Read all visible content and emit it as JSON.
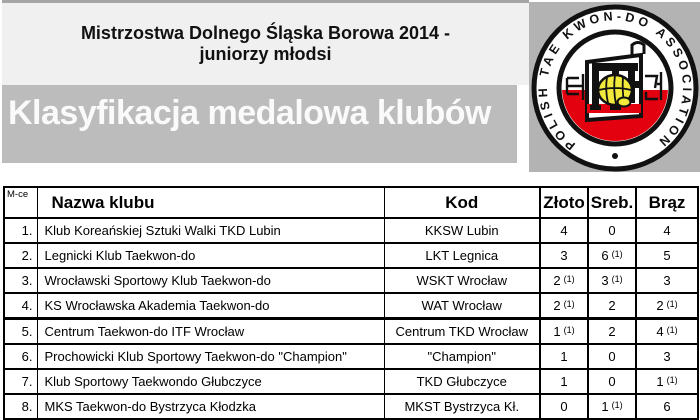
{
  "header": {
    "title_line1": "Mistrzostwa Dolnego Śląska Borowa 2014 -",
    "title_line2": "juniorzy młodsi",
    "banner": "Klasyfikacja medalowa klubów"
  },
  "logo": {
    "ring_text": "POLISH   TAE KWON-DO   ASSOCIATION",
    "colors": {
      "block_bg": "#b3b3b3",
      "ring_black": "#111111",
      "flag_red": "#e3000f",
      "fist_yellow": "#f2e93c"
    }
  },
  "table": {
    "columns": [
      "M-ce",
      "Nazwa klubu",
      "Kod",
      "Złoto",
      "Sreb.",
      "Brąz"
    ],
    "rows": [
      {
        "place": "1.",
        "club": "Klub Koreańskiej Sztuki Walki TKD Lubin",
        "code": "KKSW Lubin",
        "gold": "4",
        "gold_sup": "",
        "silver": "0",
        "silver_sup": "",
        "bronze": "4",
        "bronze_sup": ""
      },
      {
        "place": "2.",
        "club": "Legnicki Klub Taekwon-do",
        "code": "LKT Legnica",
        "gold": "3",
        "gold_sup": "",
        "silver": "6",
        "silver_sup": "(1)",
        "bronze": "5",
        "bronze_sup": ""
      },
      {
        "place": "3.",
        "club": "Wrocławski Sportowy Klub Taekwon-do",
        "code": "WSKT Wrocław",
        "gold": "2",
        "gold_sup": "(1)",
        "silver": "3",
        "silver_sup": "(1)",
        "bronze": "3",
        "bronze_sup": ""
      },
      {
        "place": "4.",
        "club": "KS Wrocławska Akademia Taekwon-do",
        "code": "WAT Wrocław",
        "gold": "2",
        "gold_sup": "(1)",
        "silver": "2",
        "silver_sup": "",
        "bronze": "2",
        "bronze_sup": "(1)"
      },
      {
        "place": "5.",
        "club": "Centrum Taekwon-do ITF Wrocław",
        "code": "Centrum TKD Wrocław",
        "gold": "1",
        "gold_sup": "(1)",
        "silver": "2",
        "silver_sup": "",
        "bronze": "4",
        "bronze_sup": "(1)"
      },
      {
        "place": "6.",
        "club": "Prochowicki Klub Sportowy Taekwon-do \"Champion\"",
        "code": "\"Champion\"",
        "gold": "1",
        "gold_sup": "",
        "silver": "0",
        "silver_sup": "",
        "bronze": "3",
        "bronze_sup": ""
      },
      {
        "place": "7.",
        "club": "Klub Sportowy Taekwondo Głubczyce",
        "code": "TKD Głubczyce",
        "gold": "1",
        "gold_sup": "",
        "silver": "0",
        "silver_sup": "",
        "bronze": "1",
        "bronze_sup": "(1)"
      },
      {
        "place": "8.",
        "club": "MKS Taekwon-do Bystrzyca Kłodzka",
        "code": "MKST Bystrzyca Kł.",
        "gold": "0",
        "gold_sup": "",
        "silver": "1",
        "silver_sup": "(1)",
        "bronze": "6",
        "bronze_sup": ""
      }
    ]
  }
}
